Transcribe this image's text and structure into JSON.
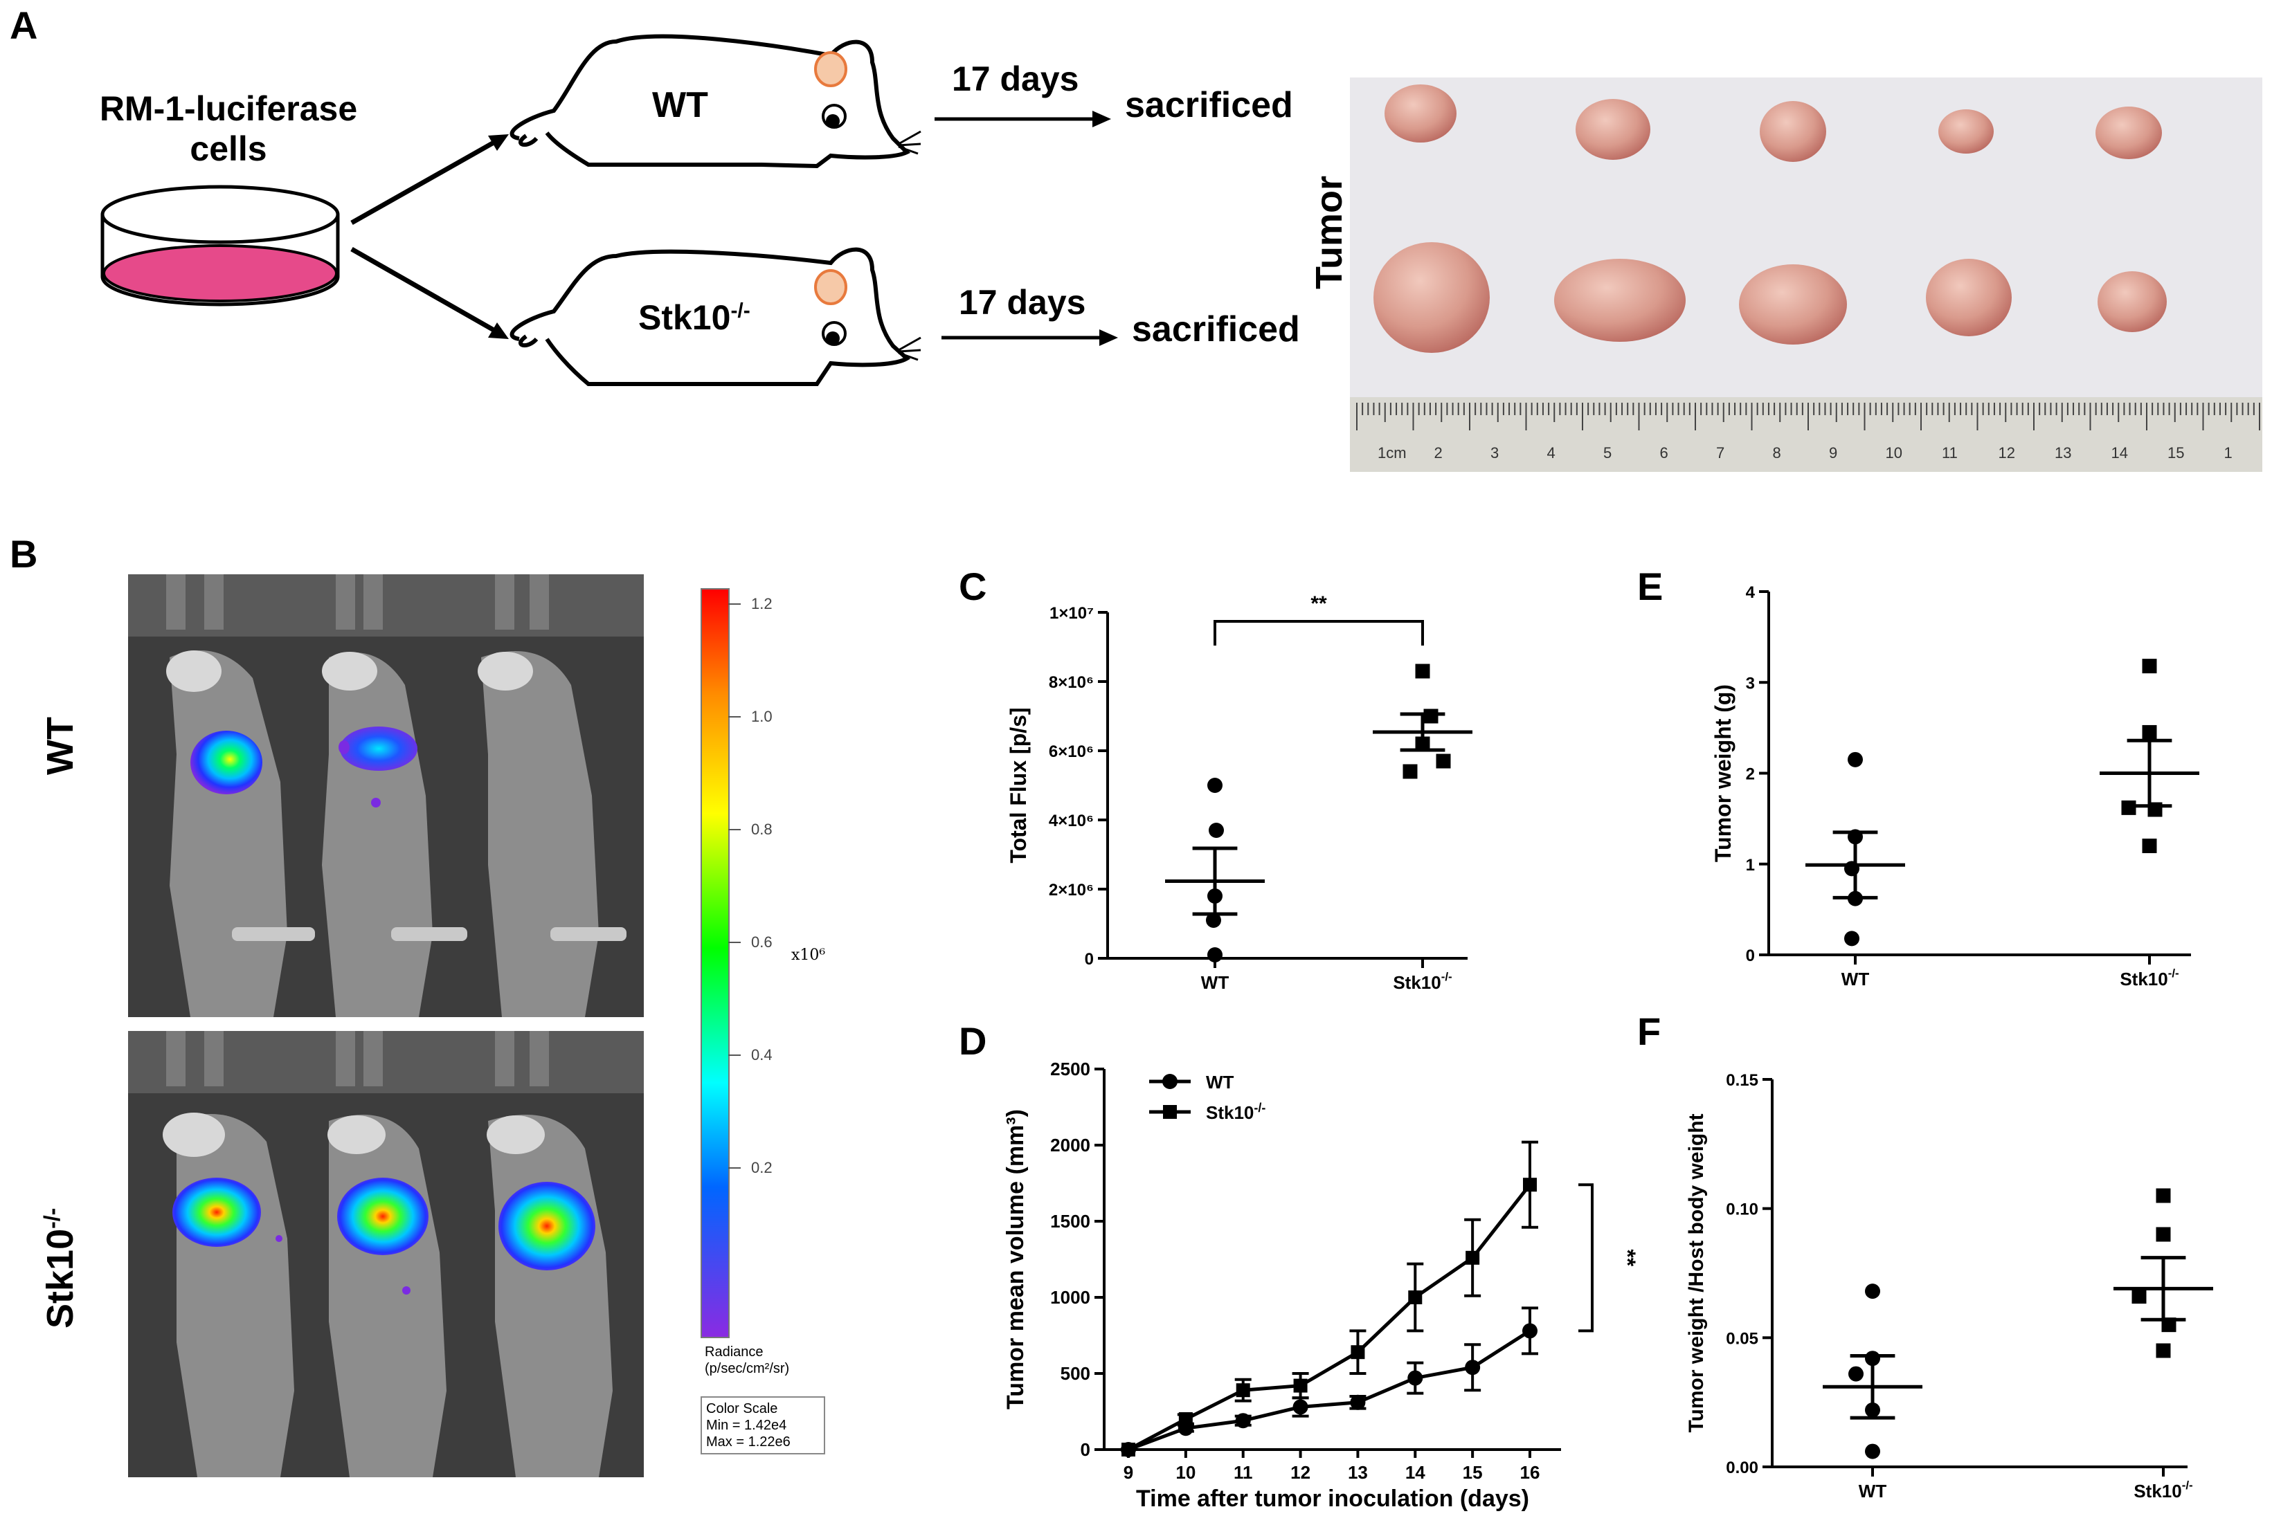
{
  "panels": {
    "a": "A",
    "b": "B",
    "c": "C",
    "d": "D",
    "e": "E",
    "f": "F"
  },
  "schematic": {
    "cells_label_line1": "RM-1-luciferase",
    "cells_label_line2": "cells",
    "mouse_wt": "WT",
    "mouse_ko_base": "Stk10",
    "mouse_ko_sup": "-/-",
    "days_label": "17 days",
    "sacrificed_label": "sacrificed",
    "tumor_label": "Tumor",
    "ruler_labels": [
      "1cm",
      "2",
      "3",
      "4",
      "5",
      "6",
      "7",
      "8",
      "9",
      "10",
      "11",
      "12",
      "13",
      "14",
      "15",
      "1"
    ]
  },
  "imaging": {
    "row_wt": "WT",
    "row_ko_base": "Stk10",
    "row_ko_sup": "-/-",
    "scale_ticks": [
      "1.2",
      "1.0",
      "0.8",
      "0.6",
      "0.4",
      "0.2"
    ],
    "scale_multiplier": "x10⁶",
    "radiance_line1": "Radiance",
    "radiance_line2": "(p/sec/cm²/sr)",
    "color_scale_title": "Color Scale",
    "color_scale_min": "Min = 1.42e4",
    "color_scale_max": "Max = 1.22e6",
    "colors": [
      "#ff0000",
      "#ff8c00",
      "#ffff00",
      "#00ff00",
      "#00ffff",
      "#0000ff",
      "#8a2be2"
    ]
  },
  "chart_data": [
    {
      "id": "C",
      "type": "scatter",
      "ylabel": "Total Flux [p/s]",
      "categories": [
        "WT",
        "Stk10 -/-"
      ],
      "ytick_labels": [
        "0",
        "2×10⁶",
        "4×10⁶",
        "6×10⁶",
        "8×10⁶",
        "1×10⁷"
      ],
      "ylim": [
        0,
        10000000
      ],
      "series": [
        {
          "name": "WT",
          "marker": "circle",
          "values": [
            5000000,
            1800000,
            1100000,
            3700000,
            100000
          ],
          "mean": 2230000,
          "sem": 950000
        },
        {
          "name": "Stk10 -/-",
          "marker": "square",
          "values": [
            8300000,
            6200000,
            7000000,
            5700000,
            5400000
          ],
          "mean": 6540000,
          "sem": 520000
        }
      ],
      "annotation": "**"
    },
    {
      "id": "D",
      "type": "line",
      "xlabel": "Time after tumor inoculation (days)",
      "ylabel": "Tumor mean volume (mm³)",
      "x": [
        9,
        10,
        11,
        12,
        13,
        14,
        15,
        16
      ],
      "ylim": [
        0,
        2500
      ],
      "yticks": [
        0,
        500,
        1000,
        1500,
        2000,
        2500
      ],
      "series": [
        {
          "name": "WT",
          "marker": "circle",
          "values": [
            0,
            140,
            190,
            280,
            310,
            470,
            540,
            780
          ],
          "err": [
            0,
            20,
            30,
            60,
            40,
            100,
            150,
            150
          ]
        },
        {
          "name": "Stk10⁻/⁻",
          "marker": "square",
          "values": [
            0,
            200,
            390,
            420,
            640,
            1000,
            1260,
            1740
          ],
          "err": [
            0,
            30,
            70,
            80,
            140,
            220,
            250,
            280
          ]
        }
      ],
      "legend": [
        "WT",
        "Stk10-/-"
      ],
      "annotation": "**"
    },
    {
      "id": "E",
      "type": "scatter",
      "ylabel": "Tumor weight (g)",
      "categories": [
        "WT",
        "Stk10 -/-"
      ],
      "ylim": [
        0,
        4
      ],
      "yticks": [
        0,
        1,
        2,
        3,
        4
      ],
      "series": [
        {
          "name": "WT",
          "marker": "circle",
          "values": [
            2.15,
            1.3,
            0.95,
            0.62,
            0.18
          ],
          "mean": 0.99,
          "sem": 0.36
        },
        {
          "name": "Stk10 -/-",
          "marker": "square",
          "values": [
            3.18,
            2.45,
            1.62,
            1.6,
            1.2
          ],
          "mean": 2.0,
          "sem": 0.36
        }
      ]
    },
    {
      "id": "F",
      "type": "scatter",
      "ylabel": "Tumor weight /Host body weight",
      "categories": [
        "WT",
        "Stk10 -/-"
      ],
      "ylim": [
        0,
        0.15
      ],
      "ytick_labels": [
        "0.00",
        "0.05",
        "0.10",
        "0.15"
      ],
      "series": [
        {
          "name": "WT",
          "marker": "circle",
          "values": [
            0.068,
            0.042,
            0.036,
            0.022,
            0.006
          ],
          "mean": 0.031,
          "sem": 0.012
        },
        {
          "name": "Stk10 -/-",
          "marker": "square",
          "values": [
            0.105,
            0.09,
            0.066,
            0.055,
            0.045
          ],
          "mean": 0.069,
          "sem": 0.012
        }
      ]
    }
  ]
}
